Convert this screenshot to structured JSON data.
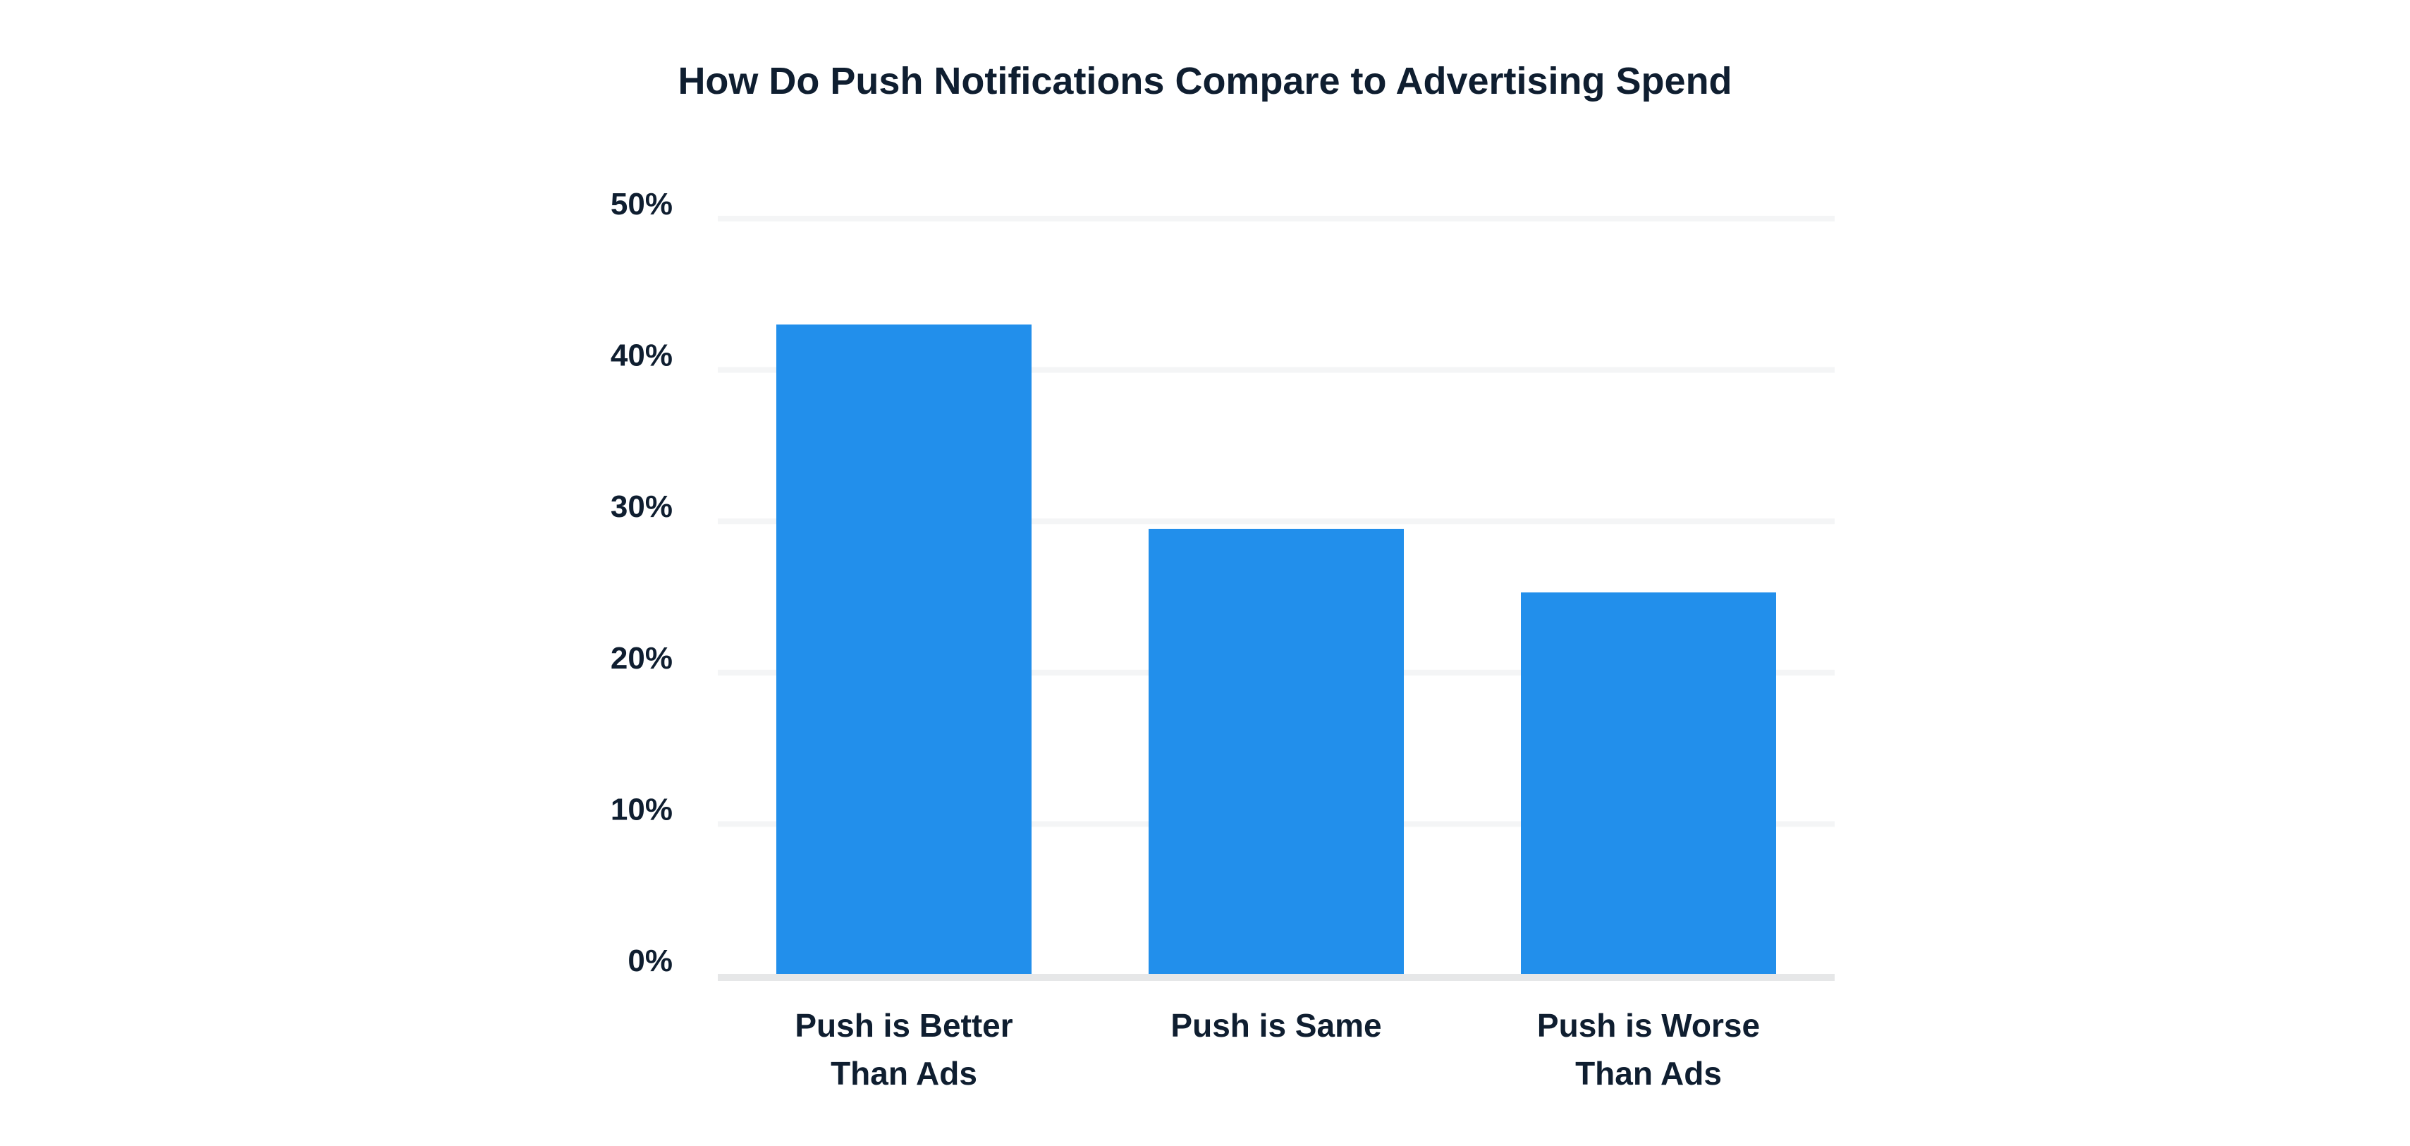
{
  "chart_data": {
    "type": "bar",
    "title": "How Do Push Notifications Compare to Advertising Spend",
    "categories": [
      [
        "Push is Better",
        "Than Ads"
      ],
      [
        "Push is Same"
      ],
      [
        "Push is Worse",
        "Than Ads"
      ]
    ],
    "values": [
      43,
      29.5,
      25.3
    ],
    "ylim": [
      0,
      50
    ],
    "yticks": [
      0,
      10,
      20,
      30,
      40,
      50
    ],
    "ytick_labels": [
      "0%",
      "10%",
      "20%",
      "30%",
      "40%",
      "50%"
    ],
    "grid": true,
    "legend": "none",
    "colors": {
      "bar": "#228FEB",
      "text": "#0F1E30",
      "grid": "#F4F5F6",
      "baseline": "#E6E7E8"
    }
  }
}
